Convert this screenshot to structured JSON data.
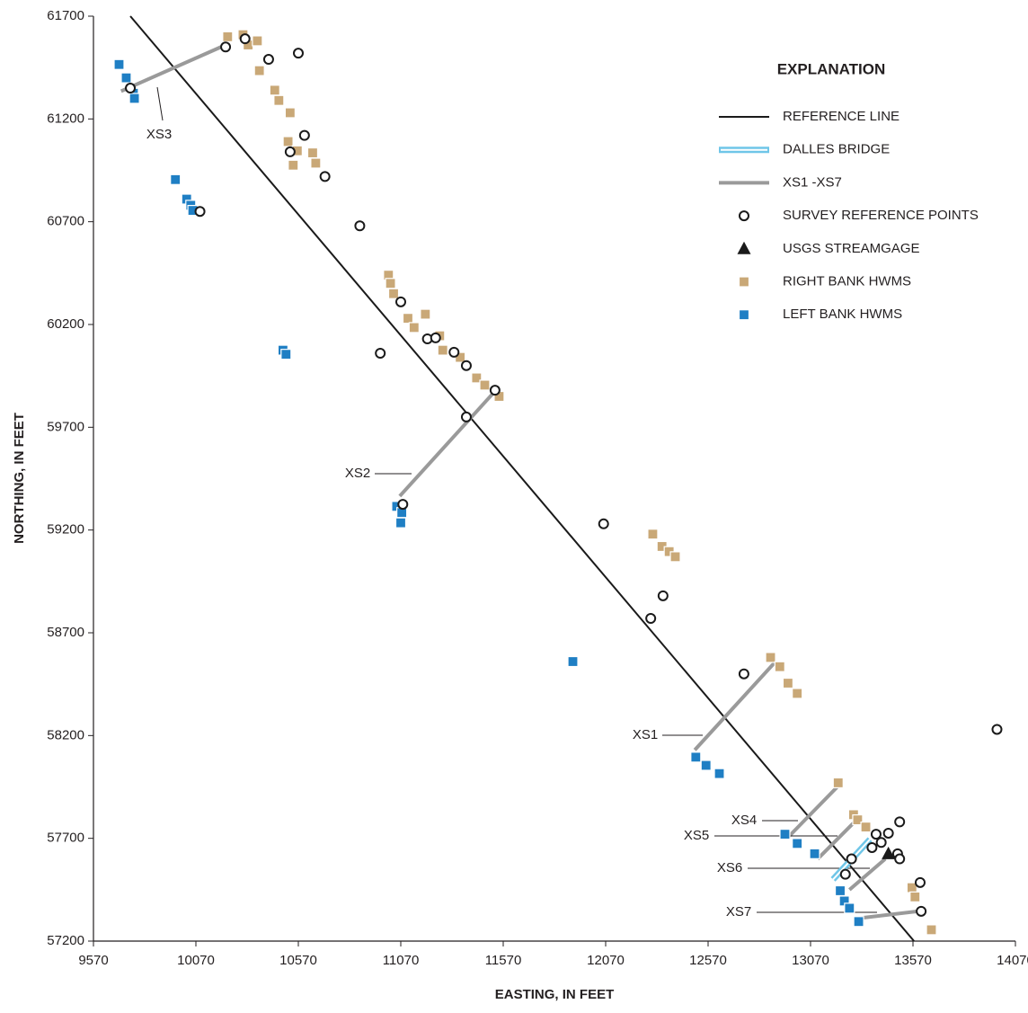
{
  "chart_data": {
    "type": "scatter",
    "xlabel": "EASTING, IN FEET",
    "ylabel": "NORTHING, IN FEET",
    "xlim": [
      9570,
      14070
    ],
    "ylim": [
      57200,
      61700
    ],
    "xticks": [
      9570,
      10070,
      10570,
      11070,
      11570,
      12070,
      12570,
      13070,
      13570,
      14070
    ],
    "yticks": [
      57200,
      57700,
      58200,
      58700,
      59200,
      59700,
      60200,
      60700,
      61200,
      61700
    ],
    "legend_title": "EXPLANATION",
    "series": [
      {
        "name": "REFERENCE LINE",
        "kind": "line",
        "color": "#1a1a1a",
        "x": [
          9750,
          13575
        ],
        "y": [
          61700,
          57200
        ]
      },
      {
        "name": "DALLES BRIDGE",
        "kind": "bridge",
        "color": "#6fc6e8",
        "x": [
          13180,
          13360
        ],
        "y": [
          57500,
          57695
        ]
      },
      {
        "name": "XS1 -XS7",
        "kind": "segments",
        "color": "#9a9a9a",
        "segments": [
          {
            "label": "XS1",
            "x": [
              12505,
              12895
            ],
            "y": [
              58130,
              58555
            ]
          },
          {
            "label": "XS2",
            "x": [
              11065,
              11525
            ],
            "y": [
              59365,
              59870
            ]
          },
          {
            "label": "XS3",
            "x": [
              9705,
              10215
            ],
            "y": [
              61335,
              61560
            ]
          },
          {
            "label": "XS4",
            "x": [
              12965,
              13225
            ],
            "y": [
              57710,
              57975
            ]
          },
          {
            "label": "XS5",
            "x": [
              13105,
              13295
            ],
            "y": [
              57600,
              57790
            ]
          },
          {
            "label": "XS6",
            "x": [
              13260,
              13435
            ],
            "y": [
              57450,
              57600
            ]
          },
          {
            "label": "XS7",
            "x": [
              13295,
              13595
            ],
            "y": [
              57310,
              57345
            ]
          }
        ]
      },
      {
        "name": "SURVEY REFERENCE POINTS",
        "kind": "circle",
        "color": "#1a1a1a",
        "x": [
          9750,
          10215,
          10310,
          10425,
          10570,
          10600,
          10530,
          10700,
          10870,
          10090,
          11070,
          10970,
          11200,
          11240,
          11330,
          11390,
          11530,
          11390,
          11080,
          12060,
          12350,
          12290,
          12745,
          13980,
          13390,
          13450,
          13505,
          13415,
          13370,
          13270,
          13495,
          13505,
          13240,
          13605,
          13610
        ],
        "y": [
          61350,
          61550,
          61590,
          61490,
          61520,
          61120,
          61040,
          60920,
          60680,
          60750,
          60310,
          60060,
          60130,
          60135,
          60065,
          60000,
          59880,
          59750,
          59325,
          59230,
          58880,
          58770,
          58500,
          58230,
          57720,
          57725,
          57780,
          57680,
          57655,
          57600,
          57625,
          57600,
          57525,
          57485,
          57345
        ]
      },
      {
        "name": "USGS STREAMGAGE",
        "kind": "triangle",
        "color": "#1a1a1a",
        "x": [
          13450
        ],
        "y": [
          57625
        ]
      },
      {
        "name": "RIGHT BANK HWMS",
        "kind": "square",
        "color": "#c9a877",
        "x": [
          10225,
          10300,
          10325,
          10370,
          10380,
          10455,
          10475,
          10530,
          10520,
          10565,
          10640,
          10655,
          10545,
          11010,
          11020,
          11035,
          11105,
          11135,
          11190,
          11260,
          11275,
          11360,
          11440,
          11480,
          11550,
          12300,
          12345,
          12380,
          12410,
          12875,
          12920,
          12960,
          13005,
          13205,
          13280,
          13300,
          13340,
          13565,
          13580,
          13660
        ],
        "y": [
          61600,
          61610,
          61560,
          61580,
          61435,
          61340,
          61290,
          61230,
          61090,
          61045,
          61035,
          60985,
          60975,
          60440,
          60400,
          60350,
          60230,
          60185,
          60250,
          60145,
          60075,
          60040,
          59940,
          59905,
          59850,
          59180,
          59120,
          59095,
          59070,
          58580,
          58535,
          58455,
          58405,
          57970,
          57815,
          57790,
          57755,
          57460,
          57415,
          57255
        ]
      },
      {
        "name": "LEFT BANK HWMS",
        "kind": "square",
        "color": "#1f7fc4",
        "x": [
          9695,
          9730,
          9765,
          9770,
          9970,
          10025,
          10045,
          10055,
          10495,
          10510,
          11050,
          11075,
          11070,
          11910,
          12510,
          12560,
          12625,
          12945,
          13005,
          13090,
          13215,
          13235,
          13260,
          13305
        ],
        "y": [
          61465,
          61400,
          61325,
          61300,
          60905,
          60810,
          60780,
          60755,
          60075,
          60055,
          59315,
          59285,
          59235,
          58560,
          58095,
          58055,
          58015,
          57720,
          57675,
          57625,
          57445,
          57395,
          57360,
          57295
        ]
      }
    ]
  }
}
